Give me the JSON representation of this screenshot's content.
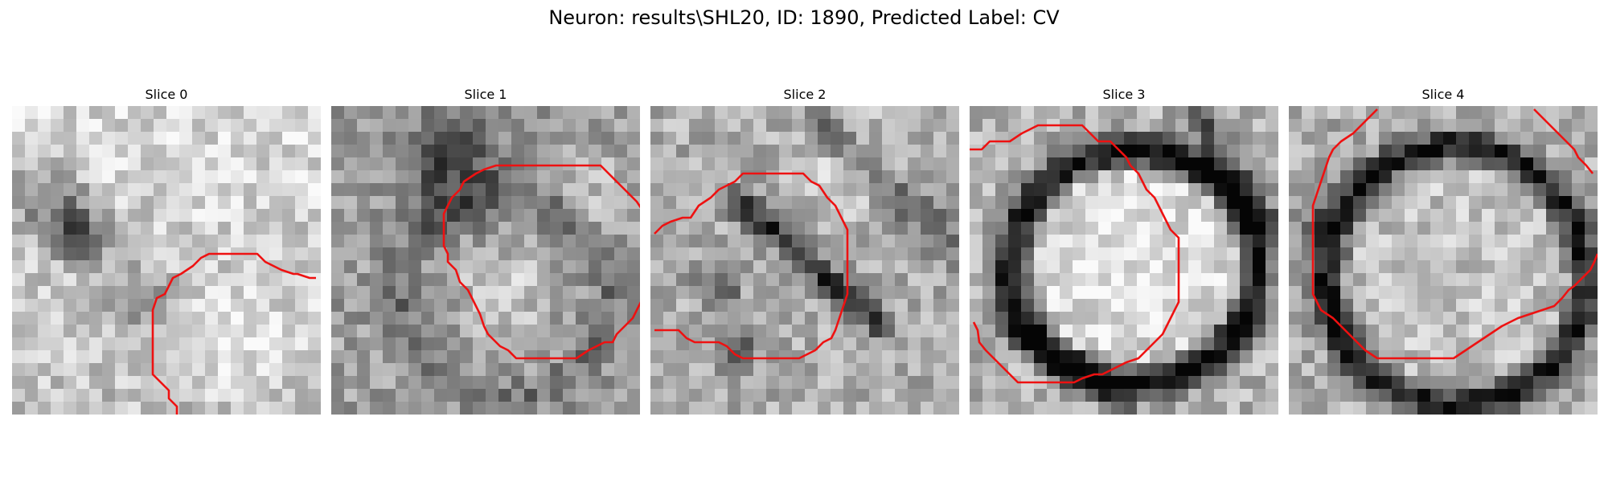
{
  "figure": {
    "title": "Neuron: results\\SHL20, ID: 1890, Predicted Label: CV"
  },
  "slices": [
    {
      "title": "Slice 0"
    },
    {
      "title": "Slice 1"
    },
    {
      "title": "Slice 2"
    },
    {
      "title": "Slice 3"
    },
    {
      "title": "Slice 4"
    }
  ],
  "colors": {
    "contour": "#ee1111"
  }
}
